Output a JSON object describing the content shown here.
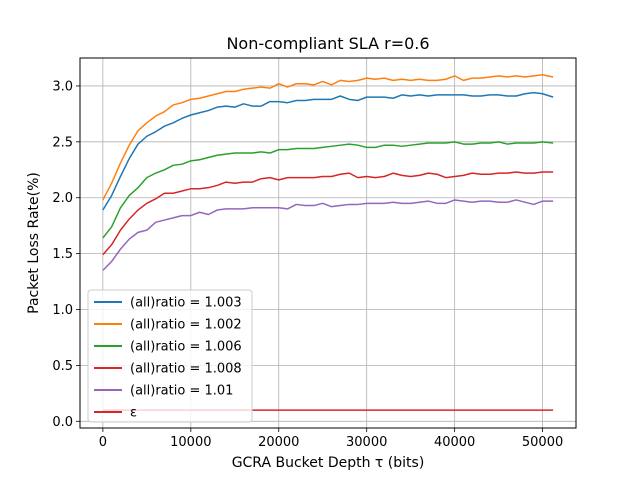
{
  "chart_data": {
    "type": "line",
    "title": "Non-compliant SLA r=0.6",
    "xlabel": "GCRA Bucket Depth τ (bits)",
    "ylabel": "Packet Loss Rate(%)",
    "xlim": [
      -2600,
      53800
    ],
    "ylim": [
      -0.06,
      3.25
    ],
    "xticks": [
      0,
      10000,
      20000,
      30000,
      40000,
      50000
    ],
    "yticks": [
      0.0,
      0.5,
      1.0,
      1.5,
      2.0,
      2.5,
      3.0
    ],
    "xtick_labels": [
      "0",
      "10000",
      "20000",
      "30000",
      "40000",
      "50000"
    ],
    "ytick_labels": [
      "0.0",
      "0.5",
      "1.0",
      "1.5",
      "2.0",
      "2.5",
      "3.0"
    ],
    "grid": true,
    "legend_position": "lower-left",
    "x": [
      0,
      1000,
      2000,
      3000,
      4000,
      5000,
      6000,
      7000,
      8000,
      9000,
      10000,
      11000,
      12000,
      13000,
      14000,
      15000,
      16000,
      17000,
      18000,
      19000,
      20000,
      21000,
      22000,
      23000,
      24000,
      25000,
      26000,
      27000,
      28000,
      29000,
      30000,
      31000,
      32000,
      33000,
      34000,
      35000,
      36000,
      37000,
      38000,
      39000,
      40000,
      41000,
      42000,
      43000,
      44000,
      45000,
      46000,
      47000,
      48000,
      49000,
      50000,
      51200
    ],
    "series": [
      {
        "name": "(all)ratio = 1.003",
        "color": "#1f77b4",
        "values": [
          1.89,
          2.02,
          2.19,
          2.35,
          2.48,
          2.55,
          2.59,
          2.64,
          2.67,
          2.71,
          2.74,
          2.76,
          2.78,
          2.81,
          2.82,
          2.81,
          2.84,
          2.82,
          2.82,
          2.86,
          2.86,
          2.85,
          2.87,
          2.87,
          2.88,
          2.88,
          2.88,
          2.91,
          2.88,
          2.87,
          2.9,
          2.9,
          2.9,
          2.89,
          2.92,
          2.91,
          2.92,
          2.91,
          2.92,
          2.92,
          2.92,
          2.92,
          2.91,
          2.91,
          2.92,
          2.92,
          2.91,
          2.91,
          2.93,
          2.94,
          2.93,
          2.9
        ]
      },
      {
        "name": "(all)ratio = 1.002",
        "color": "#ff7f0e",
        "values": [
          1.98,
          2.13,
          2.31,
          2.47,
          2.6,
          2.67,
          2.73,
          2.77,
          2.83,
          2.85,
          2.88,
          2.89,
          2.91,
          2.93,
          2.95,
          2.95,
          2.97,
          2.98,
          2.99,
          2.98,
          3.02,
          2.99,
          3.02,
          3.02,
          3.01,
          3.04,
          3.01,
          3.05,
          3.04,
          3.05,
          3.07,
          3.06,
          3.07,
          3.05,
          3.06,
          3.05,
          3.06,
          3.05,
          3.05,
          3.06,
          3.09,
          3.05,
          3.07,
          3.07,
          3.08,
          3.09,
          3.08,
          3.09,
          3.08,
          3.09,
          3.1,
          3.08
        ]
      },
      {
        "name": "(all)ratio = 1.006",
        "color": "#2ca02c",
        "values": [
          1.64,
          1.74,
          1.91,
          2.02,
          2.09,
          2.18,
          2.22,
          2.25,
          2.29,
          2.3,
          2.33,
          2.34,
          2.36,
          2.38,
          2.39,
          2.4,
          2.4,
          2.4,
          2.41,
          2.4,
          2.43,
          2.43,
          2.44,
          2.44,
          2.44,
          2.45,
          2.46,
          2.47,
          2.48,
          2.47,
          2.45,
          2.45,
          2.47,
          2.47,
          2.46,
          2.47,
          2.48,
          2.49,
          2.49,
          2.49,
          2.5,
          2.48,
          2.48,
          2.49,
          2.49,
          2.5,
          2.48,
          2.49,
          2.49,
          2.49,
          2.5,
          2.49
        ]
      },
      {
        "name": "(all)ratio = 1.008",
        "color": "#d62728",
        "values": [
          1.49,
          1.58,
          1.71,
          1.81,
          1.89,
          1.95,
          1.99,
          2.04,
          2.04,
          2.06,
          2.08,
          2.08,
          2.09,
          2.11,
          2.14,
          2.13,
          2.14,
          2.14,
          2.17,
          2.18,
          2.16,
          2.18,
          2.18,
          2.18,
          2.18,
          2.19,
          2.19,
          2.21,
          2.22,
          2.18,
          2.19,
          2.18,
          2.19,
          2.22,
          2.2,
          2.19,
          2.2,
          2.22,
          2.21,
          2.18,
          2.19,
          2.2,
          2.22,
          2.21,
          2.21,
          2.22,
          2.22,
          2.23,
          2.22,
          2.22,
          2.23,
          2.23
        ]
      },
      {
        "name": "(all)ratio = 1.01",
        "color": "#9467bd",
        "values": [
          1.35,
          1.43,
          1.54,
          1.63,
          1.69,
          1.71,
          1.78,
          1.8,
          1.82,
          1.84,
          1.84,
          1.87,
          1.85,
          1.89,
          1.9,
          1.9,
          1.9,
          1.91,
          1.91,
          1.91,
          1.91,
          1.9,
          1.94,
          1.93,
          1.93,
          1.95,
          1.92,
          1.93,
          1.94,
          1.94,
          1.95,
          1.95,
          1.95,
          1.96,
          1.95,
          1.95,
          1.96,
          1.97,
          1.95,
          1.95,
          1.98,
          1.97,
          1.96,
          1.97,
          1.97,
          1.96,
          1.96,
          1.98,
          1.96,
          1.94,
          1.97,
          1.97
        ]
      },
      {
        "name": "ε",
        "color": "#d62728",
        "values": [
          0.1,
          0.1,
          0.1,
          0.1,
          0.1,
          0.1,
          0.1,
          0.1,
          0.1,
          0.1,
          0.1,
          0.1,
          0.1,
          0.1,
          0.1,
          0.1,
          0.1,
          0.1,
          0.1,
          0.1,
          0.1,
          0.1,
          0.1,
          0.1,
          0.1,
          0.1,
          0.1,
          0.1,
          0.1,
          0.1,
          0.1,
          0.1,
          0.1,
          0.1,
          0.1,
          0.1,
          0.1,
          0.1,
          0.1,
          0.1,
          0.1,
          0.1,
          0.1,
          0.1,
          0.1,
          0.1,
          0.1,
          0.1,
          0.1,
          0.1,
          0.1,
          0.1
        ]
      }
    ]
  }
}
